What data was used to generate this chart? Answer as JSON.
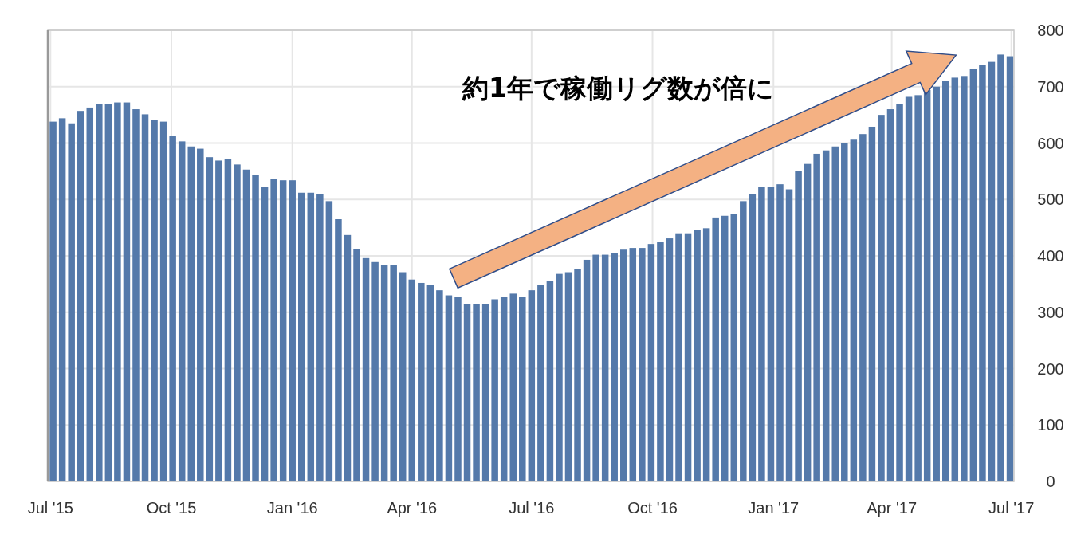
{
  "chart_data": {
    "type": "bar",
    "color": "#5479aa",
    "x": [
      "2015-07-03",
      "2015-07-10",
      "2015-07-17",
      "2015-07-24",
      "2015-07-31",
      "2015-08-07",
      "2015-08-14",
      "2015-08-21",
      "2015-08-28",
      "2015-09-04",
      "2015-09-11",
      "2015-09-18",
      "2015-09-25",
      "2015-10-02",
      "2015-10-09",
      "2015-10-16",
      "2015-10-23",
      "2015-10-30",
      "2015-11-06",
      "2015-11-13",
      "2015-11-20",
      "2015-11-27",
      "2015-12-04",
      "2015-12-11",
      "2015-12-18",
      "2015-12-25",
      "2016-01-01",
      "2016-01-08",
      "2016-01-15",
      "2016-01-22",
      "2016-01-29",
      "2016-02-05",
      "2016-02-12",
      "2016-02-19",
      "2016-02-26",
      "2016-03-04",
      "2016-03-11",
      "2016-03-18",
      "2016-03-25",
      "2016-04-01",
      "2016-04-08",
      "2016-04-15",
      "2016-04-22",
      "2016-04-29",
      "2016-05-06",
      "2016-05-13",
      "2016-05-20",
      "2016-05-27",
      "2016-06-03",
      "2016-06-10",
      "2016-06-17",
      "2016-06-24",
      "2016-07-01",
      "2016-07-08",
      "2016-07-15",
      "2016-07-22",
      "2016-07-29",
      "2016-08-05",
      "2016-08-12",
      "2016-08-19",
      "2016-08-26",
      "2016-09-02",
      "2016-09-09",
      "2016-09-16",
      "2016-09-23",
      "2016-09-30",
      "2016-10-07",
      "2016-10-14",
      "2016-10-21",
      "2016-10-28",
      "2016-11-04",
      "2016-11-11",
      "2016-11-18",
      "2016-11-25",
      "2016-12-02",
      "2016-12-09",
      "2016-12-16",
      "2016-12-23",
      "2016-12-30",
      "2017-01-06",
      "2017-01-13",
      "2017-01-20",
      "2017-01-27",
      "2017-02-03",
      "2017-02-10",
      "2017-02-17",
      "2017-02-24",
      "2017-03-03",
      "2017-03-10",
      "2017-03-17",
      "2017-03-24",
      "2017-03-31",
      "2017-04-07",
      "2017-04-14",
      "2017-04-21",
      "2017-04-28",
      "2017-05-05",
      "2017-05-12",
      "2017-05-19",
      "2017-05-26",
      "2017-06-02",
      "2017-06-09",
      "2017-06-16",
      "2017-06-23",
      "2017-06-30"
    ],
    "values": [
      638,
      644,
      635,
      657,
      663,
      669,
      669,
      672,
      672,
      660,
      651,
      641,
      638,
      612,
      603,
      594,
      590,
      575,
      569,
      572,
      562,
      553,
      544,
      522,
      537,
      534,
      534,
      512,
      512,
      509,
      497,
      465,
      437,
      412,
      396,
      389,
      384,
      384,
      371,
      358,
      352,
      349,
      339,
      330,
      327,
      314,
      314,
      314,
      323,
      327,
      333,
      327,
      339,
      349,
      355,
      368,
      371,
      377,
      393,
      402,
      402,
      405,
      411,
      414,
      414,
      421,
      424,
      431,
      440,
      440,
      446,
      449,
      468,
      471,
      474,
      497,
      509,
      522,
      522,
      527,
      518,
      550,
      563,
      581,
      587,
      594,
      600,
      606,
      616,
      629,
      650,
      660,
      669,
      682,
      685,
      694,
      700,
      710,
      716,
      719,
      732,
      738,
      744,
      757,
      754
    ],
    "xlim": [
      "2015-06-29",
      "2017-07-03"
    ],
    "xticks": [
      {
        "value": "2015-07-01",
        "label": "Jul '15"
      },
      {
        "value": "2015-10-01",
        "label": "Oct '15"
      },
      {
        "value": "2016-01-01",
        "label": "Jan '16"
      },
      {
        "value": "2016-04-01",
        "label": "Apr '16"
      },
      {
        "value": "2016-07-01",
        "label": "Jul '16"
      },
      {
        "value": "2016-10-01",
        "label": "Oct '16"
      },
      {
        "value": "2017-01-01",
        "label": "Jan '17"
      },
      {
        "value": "2017-04-01",
        "label": "Apr '17"
      },
      {
        "value": "2017-07-01",
        "label": "Jul '17"
      }
    ],
    "ylim": [
      0,
      800
    ],
    "yticks": [
      0,
      100,
      200,
      300,
      400,
      500,
      600,
      700,
      800
    ],
    "grid": true,
    "annotations": [
      "約1年で稼働リグ数が倍に"
    ]
  }
}
